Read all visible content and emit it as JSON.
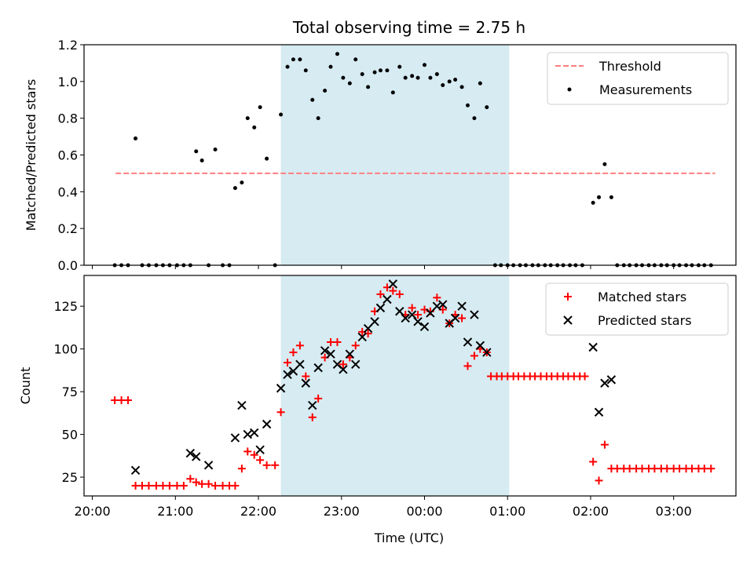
{
  "figure": {
    "title": "Total observing time = 2.75 h",
    "xlabel": "Time (UTC)"
  },
  "chart_data": [
    {
      "type": "scatter",
      "panel": "top",
      "ylabel": "Matched/Predicted stars",
      "ylim": [
        0,
        1.2
      ],
      "xlim": [
        -0.1,
        7.75
      ],
      "x_unit": "hours after 20:00 UTC",
      "x_tick_labels": [
        "20:00",
        "21:00",
        "22:00",
        "23:00",
        "00:00",
        "01:00",
        "02:00",
        "03:00"
      ],
      "y_ticks": [
        0.0,
        0.2,
        0.4,
        0.6,
        0.8,
        1.0,
        1.2
      ],
      "y_tick_labels": [
        "0.0",
        "0.2",
        "0.4",
        "0.6",
        "0.8",
        "1.0",
        "1.2"
      ],
      "shaded_span": [
        2.27,
        5.02
      ],
      "threshold": {
        "name": "Threshold",
        "value": 0.5,
        "x_range": [
          0.28,
          7.5
        ],
        "color": "#ff7f7f"
      },
      "legend": {
        "placement": "upper right",
        "entries": [
          "Threshold",
          "Measurements"
        ]
      },
      "series": [
        {
          "name": "Measurements",
          "color": "#000000",
          "points": [
            [
              0.27,
              0
            ],
            [
              0.35,
              0
            ],
            [
              0.43,
              0
            ],
            [
              0.52,
              0.69
            ],
            [
              0.6,
              0
            ],
            [
              0.68,
              0
            ],
            [
              0.77,
              0
            ],
            [
              0.85,
              0
            ],
            [
              0.93,
              0
            ],
            [
              1.02,
              0
            ],
            [
              1.1,
              0
            ],
            [
              1.18,
              0
            ],
            [
              1.25,
              0.62
            ],
            [
              1.32,
              0.57
            ],
            [
              1.4,
              0
            ],
            [
              1.48,
              0.63
            ],
            [
              1.57,
              0
            ],
            [
              1.65,
              0
            ],
            [
              1.72,
              0.42
            ],
            [
              1.8,
              0.45
            ],
            [
              1.87,
              0.8
            ],
            [
              1.95,
              0.75
            ],
            [
              2.02,
              0.86
            ],
            [
              2.1,
              0.58
            ],
            [
              2.2,
              0
            ],
            [
              2.27,
              0.82
            ],
            [
              2.35,
              1.08
            ],
            [
              2.42,
              1.12
            ],
            [
              2.5,
              1.12
            ],
            [
              2.57,
              1.06
            ],
            [
              2.65,
              0.9
            ],
            [
              2.72,
              0.8
            ],
            [
              2.8,
              0.95
            ],
            [
              2.87,
              1.08
            ],
            [
              2.95,
              1.15
            ],
            [
              3.02,
              1.02
            ],
            [
              3.1,
              0.99
            ],
            [
              3.17,
              1.12
            ],
            [
              3.25,
              1.04
            ],
            [
              3.32,
              0.97
            ],
            [
              3.4,
              1.05
            ],
            [
              3.47,
              1.06
            ],
            [
              3.55,
              1.06
            ],
            [
              3.62,
              0.94
            ],
            [
              3.7,
              1.08
            ],
            [
              3.77,
              1.02
            ],
            [
              3.85,
              1.03
            ],
            [
              3.92,
              1.02
            ],
            [
              4.0,
              1.09
            ],
            [
              4.07,
              1.02
            ],
            [
              4.15,
              1.04
            ],
            [
              4.22,
              0.98
            ],
            [
              4.3,
              1.0
            ],
            [
              4.37,
              1.01
            ],
            [
              4.45,
              0.97
            ],
            [
              4.52,
              0.87
            ],
            [
              4.6,
              0.8
            ],
            [
              4.67,
              0.99
            ],
            [
              4.75,
              0.86
            ],
            [
              4.85,
              0
            ],
            [
              4.92,
              0
            ],
            [
              5.0,
              0
            ],
            [
              5.07,
              0
            ],
            [
              5.15,
              0
            ],
            [
              5.22,
              0
            ],
            [
              5.3,
              0
            ],
            [
              5.37,
              0
            ],
            [
              5.45,
              0
            ],
            [
              5.52,
              0
            ],
            [
              5.6,
              0
            ],
            [
              5.67,
              0
            ],
            [
              5.75,
              0
            ],
            [
              5.82,
              0
            ],
            [
              5.9,
              0
            ],
            [
              6.03,
              0.34
            ],
            [
              6.1,
              0.37
            ],
            [
              6.17,
              0.55
            ],
            [
              6.25,
              0.37
            ],
            [
              6.32,
              0
            ],
            [
              6.4,
              0
            ],
            [
              6.47,
              0
            ],
            [
              6.55,
              0
            ],
            [
              6.62,
              0
            ],
            [
              6.7,
              0
            ],
            [
              6.77,
              0
            ],
            [
              6.85,
              0
            ],
            [
              6.92,
              0
            ],
            [
              7.0,
              0
            ],
            [
              7.07,
              0
            ],
            [
              7.15,
              0
            ],
            [
              7.22,
              0
            ],
            [
              7.3,
              0
            ],
            [
              7.37,
              0
            ],
            [
              7.45,
              0
            ]
          ]
        }
      ]
    },
    {
      "type": "scatter",
      "panel": "bottom",
      "ylabel": "Count",
      "ylim": [
        14,
        143
      ],
      "xlim": [
        -0.1,
        7.75
      ],
      "x_unit": "hours after 20:00 UTC",
      "x_tick_labels": [
        "20:00",
        "21:00",
        "22:00",
        "23:00",
        "00:00",
        "01:00",
        "02:00",
        "03:00"
      ],
      "y_ticks": [
        25,
        50,
        75,
        100,
        125
      ],
      "y_tick_labels": [
        "25",
        "50",
        "75",
        "100",
        "125"
      ],
      "shaded_span": [
        2.27,
        5.02
      ],
      "legend": {
        "placement": "upper right",
        "entries": [
          "Matched stars",
          "Predicted stars"
        ]
      },
      "series": [
        {
          "name": "Matched stars",
          "marker": "plus",
          "color": "#ff0000",
          "points": [
            [
              0.27,
              70
            ],
            [
              0.35,
              70
            ],
            [
              0.43,
              70
            ],
            [
              0.52,
              20
            ],
            [
              0.6,
              20
            ],
            [
              0.68,
              20
            ],
            [
              0.77,
              20
            ],
            [
              0.85,
              20
            ],
            [
              0.93,
              20
            ],
            [
              1.02,
              20
            ],
            [
              1.1,
              20
            ],
            [
              1.18,
              24
            ],
            [
              1.25,
              22
            ],
            [
              1.32,
              21
            ],
            [
              1.4,
              21
            ],
            [
              1.48,
              20
            ],
            [
              1.57,
              20
            ],
            [
              1.65,
              20
            ],
            [
              1.72,
              20
            ],
            [
              1.8,
              30
            ],
            [
              1.87,
              40
            ],
            [
              1.95,
              38
            ],
            [
              2.02,
              35
            ],
            [
              2.1,
              32
            ],
            [
              2.2,
              32
            ],
            [
              2.27,
              63
            ],
            [
              2.35,
              92
            ],
            [
              2.42,
              98
            ],
            [
              2.5,
              102
            ],
            [
              2.57,
              84
            ],
            [
              2.65,
              60
            ],
            [
              2.72,
              71
            ],
            [
              2.8,
              95
            ],
            [
              2.87,
              104
            ],
            [
              2.95,
              104
            ],
            [
              3.02,
              91
            ],
            [
              3.1,
              95
            ],
            [
              3.17,
              102
            ],
            [
              3.25,
              110
            ],
            [
              3.32,
              109
            ],
            [
              3.4,
              122
            ],
            [
              3.47,
              132
            ],
            [
              3.55,
              136
            ],
            [
              3.62,
              134
            ],
            [
              3.7,
              132
            ],
            [
              3.77,
              120
            ],
            [
              3.85,
              124
            ],
            [
              3.92,
              120
            ],
            [
              4.0,
              123
            ],
            [
              4.07,
              122
            ],
            [
              4.15,
              130
            ],
            [
              4.22,
              123
            ],
            [
              4.3,
              115
            ],
            [
              4.37,
              120
            ],
            [
              4.45,
              118
            ],
            [
              4.52,
              90
            ],
            [
              4.6,
              96
            ],
            [
              4.67,
              100
            ],
            [
              4.75,
              98
            ],
            [
              4.8,
              84
            ],
            [
              4.87,
              84
            ],
            [
              4.93,
              84
            ],
            [
              5.0,
              84
            ],
            [
              5.07,
              84
            ],
            [
              5.13,
              84
            ],
            [
              5.2,
              84
            ],
            [
              5.27,
              84
            ],
            [
              5.33,
              84
            ],
            [
              5.4,
              84
            ],
            [
              5.47,
              84
            ],
            [
              5.53,
              84
            ],
            [
              5.6,
              84
            ],
            [
              5.67,
              84
            ],
            [
              5.73,
              84
            ],
            [
              5.8,
              84
            ],
            [
              5.87,
              84
            ],
            [
              5.93,
              84
            ],
            [
              6.03,
              34
            ],
            [
              6.1,
              23
            ],
            [
              6.17,
              44
            ],
            [
              6.25,
              30
            ],
            [
              6.32,
              30
            ],
            [
              6.4,
              30
            ],
            [
              6.47,
              30
            ],
            [
              6.55,
              30
            ],
            [
              6.62,
              30
            ],
            [
              6.7,
              30
            ],
            [
              6.77,
              30
            ],
            [
              6.85,
              30
            ],
            [
              6.92,
              30
            ],
            [
              7.0,
              30
            ],
            [
              7.07,
              30
            ],
            [
              7.15,
              30
            ],
            [
              7.22,
              30
            ],
            [
              7.3,
              30
            ],
            [
              7.37,
              30
            ],
            [
              7.45,
              30
            ]
          ]
        },
        {
          "name": "Predicted stars",
          "marker": "x",
          "color": "#000000",
          "points": [
            [
              0.52,
              29
            ],
            [
              1.18,
              39
            ],
            [
              1.25,
              37
            ],
            [
              1.4,
              32
            ],
            [
              1.72,
              48
            ],
            [
              1.8,
              67
            ],
            [
              1.87,
              50
            ],
            [
              1.95,
              51
            ],
            [
              2.02,
              41
            ],
            [
              2.1,
              56
            ],
            [
              2.27,
              77
            ],
            [
              2.35,
              85
            ],
            [
              2.42,
              87
            ],
            [
              2.5,
              91
            ],
            [
              2.57,
              80
            ],
            [
              2.65,
              67
            ],
            [
              2.72,
              89
            ],
            [
              2.8,
              99
            ],
            [
              2.87,
              97
            ],
            [
              2.95,
              91
            ],
            [
              3.02,
              88
            ],
            [
              3.1,
              97
            ],
            [
              3.17,
              91
            ],
            [
              3.25,
              107
            ],
            [
              3.32,
              112
            ],
            [
              3.4,
              116
            ],
            [
              3.47,
              124
            ],
            [
              3.55,
              129
            ],
            [
              3.62,
              138
            ],
            [
              3.7,
              122
            ],
            [
              3.77,
              118
            ],
            [
              3.85,
              120
            ],
            [
              3.92,
              116
            ],
            [
              4.0,
              113
            ],
            [
              4.07,
              121
            ],
            [
              4.15,
              125
            ],
            [
              4.22,
              126
            ],
            [
              4.3,
              115
            ],
            [
              4.37,
              118
            ],
            [
              4.45,
              125
            ],
            [
              4.52,
              104
            ],
            [
              4.6,
              120
            ],
            [
              4.67,
              102
            ],
            [
              4.75,
              98
            ],
            [
              6.03,
              101
            ],
            [
              6.1,
              63
            ],
            [
              6.17,
              80
            ],
            [
              6.25,
              82
            ]
          ]
        }
      ]
    }
  ]
}
